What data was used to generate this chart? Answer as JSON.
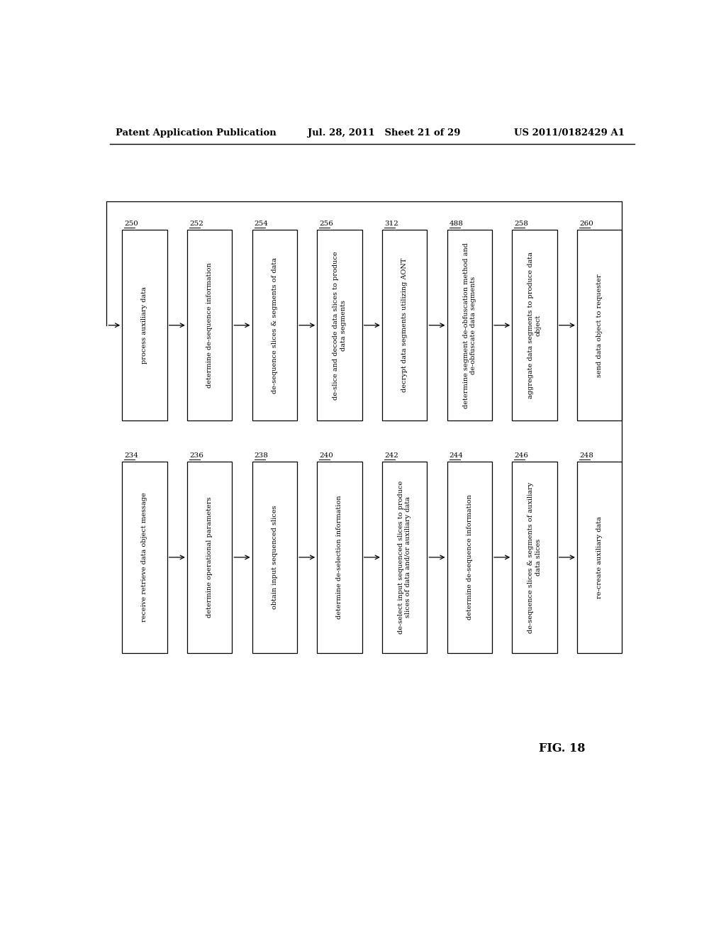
{
  "header_left": "Patent Application Publication",
  "header_mid": "Jul. 28, 2011   Sheet 21 of 29",
  "header_right": "US 2011/0182429 A1",
  "fig_label": "FIG. 18",
  "top_row": {
    "boxes": [
      {
        "id": "250",
        "label": "process auxiliary data"
      },
      {
        "id": "252",
        "label": "determine de-sequence information"
      },
      {
        "id": "254",
        "label": "de-sequence slices & segments of data"
      },
      {
        "id": "256",
        "label": "de-slice and decode data slices to produce\ndata segments"
      },
      {
        "id": "312",
        "label": "decrypt data segments utilizing AONT"
      },
      {
        "id": "488",
        "label": "determine segment de-obfuscation method and\nde-obfuscate data segments"
      },
      {
        "id": "258",
        "label": "aggregate data segments to produce data\nobject"
      },
      {
        "id": "260",
        "label": "send data object to requester"
      }
    ]
  },
  "bottom_row": {
    "boxes": [
      {
        "id": "234",
        "label": "receive retrieve data object message"
      },
      {
        "id": "236",
        "label": "determine operational parameters"
      },
      {
        "id": "238",
        "label": "obtain input sequenced slices"
      },
      {
        "id": "240",
        "label": "determine de-selection information"
      },
      {
        "id": "242",
        "label": "de-select input sequenced slices to produce\nslices of data and/or auxiliary data"
      },
      {
        "id": "244",
        "label": "determine de-sequence information"
      },
      {
        "id": "246",
        "label": "de-sequence slices & segments of auxiliary\ndata slices"
      },
      {
        "id": "248",
        "label": "re-create auxiliary data"
      }
    ]
  },
  "bg_color": "#ffffff",
  "box_edge_color": "#000000",
  "text_color": "#000000",
  "arrow_color": "#000000",
  "font_size": 7.0,
  "header_font_size": 9.5,
  "id_font_size": 7.5
}
